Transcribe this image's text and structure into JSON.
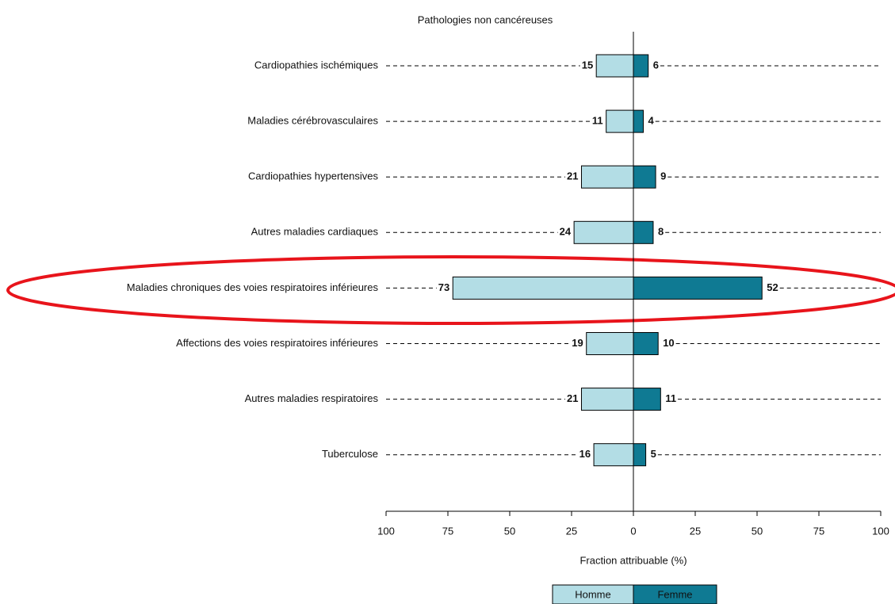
{
  "chart_data": {
    "type": "bar",
    "orientation": "horizontal",
    "title": "Pathologies non cancéreuses",
    "xlabel": "Fraction attribuable (%)",
    "categories": [
      "Cardiopathies ischémiques",
      "Maladies cérébrovasculaires",
      "Cardiopathies hypertensives",
      "Autres maladies cardiaques",
      "Maladies chroniques des voies respiratoires inférieures",
      "Affections des voies respiratoires inférieures",
      "Autres maladies respiratoires",
      "Tuberculose"
    ],
    "series": [
      {
        "name": "Homme",
        "color": "#b3dde5",
        "values": [
          15,
          11,
          21,
          24,
          73,
          19,
          21,
          16
        ]
      },
      {
        "name": "Femme",
        "color": "#0f7a93",
        "values": [
          6,
          4,
          9,
          8,
          52,
          10,
          11,
          5
        ]
      }
    ],
    "xlim": [
      -100,
      100
    ],
    "xticks": [
      {
        "value": -100,
        "label": "100"
      },
      {
        "value": -75,
        "label": "75"
      },
      {
        "value": -50,
        "label": "50"
      },
      {
        "value": -25,
        "label": "25"
      },
      0,
      25,
      50,
      75,
      100
    ]
  }
}
